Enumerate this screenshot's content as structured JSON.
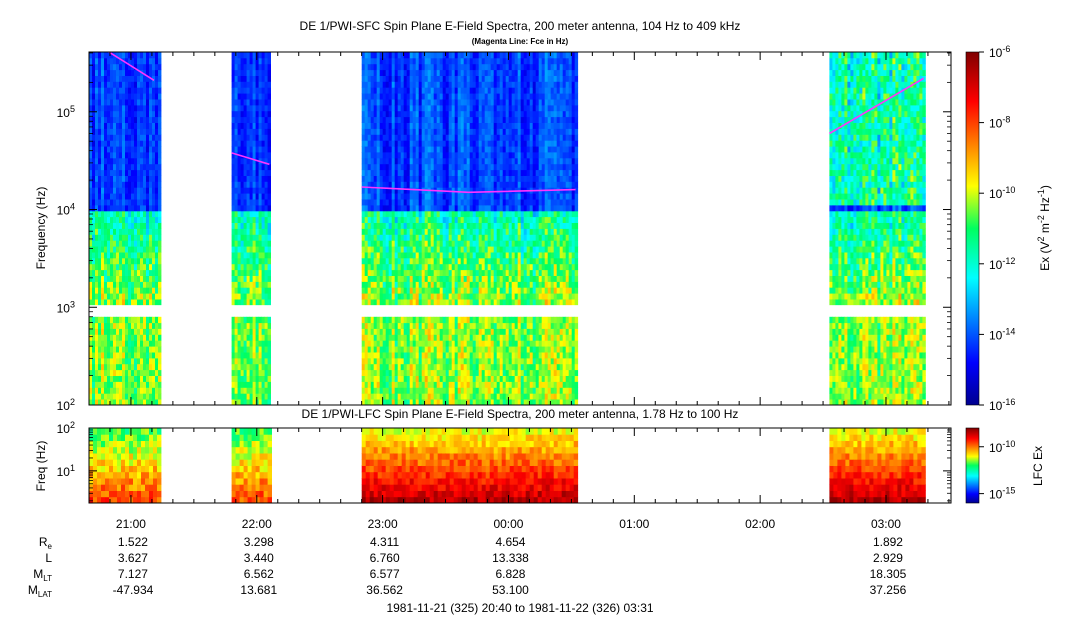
{
  "chart_data": [
    {
      "type": "heatmap",
      "title": "DE 1/PWI-SFC  Spin Plane E-Field Spectra, 200 meter antenna, 104 Hz to 409 kHz",
      "subtitle": "(Magenta Line: Fce in Hz)",
      "ylabel": "Frequency (Hz)",
      "y_scale": "log",
      "ylim": [
        100,
        409000
      ],
      "y_ticks": [
        {
          "value": 100,
          "base": "10",
          "exp": "2"
        },
        {
          "value": 1000,
          "base": "10",
          "exp": "3"
        },
        {
          "value": 10000,
          "base": "10",
          "exp": "4"
        },
        {
          "value": 100000,
          "base": "10",
          "exp": "5"
        }
      ],
      "colorbar": {
        "label_main": "Ex (V",
        "label_sup1": "2",
        "label_mid": " m",
        "label_sup2": "-2",
        "label_mid2": " Hz",
        "label_sup3": "-1",
        "label_end": ")",
        "scale": "log",
        "range": [
          1e-16,
          1e-06
        ],
        "ticks": [
          {
            "value": 1e-06,
            "base": "10",
            "exp": "-6"
          },
          {
            "value": 1e-08,
            "base": "10",
            "exp": "-8"
          },
          {
            "value": 1e-10,
            "base": "10",
            "exp": "-10"
          },
          {
            "value": 1e-12,
            "base": "10",
            "exp": "-12"
          },
          {
            "value": 1e-14,
            "base": "10",
            "exp": "-14"
          },
          {
            "value": 1e-16,
            "base": "10",
            "exp": "-16"
          }
        ]
      },
      "data_gaps_hz": [
        [
          900,
          1050
        ]
      ],
      "data_intervals_minutes_after_2040": [
        {
          "start": 0,
          "end": 34,
          "fce_hz": [
            [
              5,
              470000
            ],
            [
              31,
              210000
            ]
          ]
        },
        {
          "start": 68,
          "end": 86,
          "fce_hz": [
            [
              68,
              38000
            ],
            [
              86,
              29000
            ]
          ]
        },
        {
          "start": 130,
          "end": 232,
          "fce_hz": [
            [
              130,
              17000
            ],
            [
              181,
              15000
            ],
            [
              232,
              16000
            ]
          ]
        },
        {
          "start": 353,
          "end": 398,
          "fce_hz": [
            [
              353,
              60000
            ],
            [
              398,
              220000
            ]
          ]
        }
      ],
      "fce_line_color": "#ff33ff"
    },
    {
      "type": "heatmap",
      "title": "DE 1/PWI-LFC  Spin Plane E-Field Spectra, 200 meter antenna, 1.78 Hz to 100 Hz",
      "ylabel": "Freq (Hz)",
      "y_scale": "log",
      "ylim": [
        1.78,
        100
      ],
      "y_ticks": [
        {
          "value": 10,
          "label": "10",
          "exp": "1"
        },
        {
          "value": 100,
          "label": "10",
          "exp": "2"
        }
      ],
      "colorbar": {
        "label": "LFC Ex",
        "scale": "log",
        "range": [
          1e-16,
          1e-08
        ],
        "ticks": [
          {
            "value": 1e-10,
            "base": "10",
            "exp": "-10"
          },
          {
            "value": 1e-15,
            "base": "10",
            "exp": "-15"
          }
        ]
      },
      "data_intervals_minutes_after_2040": [
        {
          "start": 0,
          "end": 34
        },
        {
          "start": 68,
          "end": 86
        },
        {
          "start": 130,
          "end": 232
        },
        {
          "start": 353,
          "end": 398
        }
      ]
    }
  ],
  "x_axis": {
    "start": "20:40",
    "end": "03:31",
    "range_minutes": [
      0,
      411
    ],
    "ticks": [
      {
        "minutes": 20,
        "label": "21:00"
      },
      {
        "minutes": 80,
        "label": "22:00"
      },
      {
        "minutes": 140,
        "label": "23:00"
      },
      {
        "minutes": 200,
        "label": "00:00"
      },
      {
        "minutes": 260,
        "label": "01:00"
      },
      {
        "minutes": 320,
        "label": "02:00"
      },
      {
        "minutes": 380,
        "label": "03:00"
      }
    ]
  },
  "ephemeris": {
    "rows": [
      {
        "label": "R",
        "sub": "e",
        "values": [
          "1.522",
          "3.298",
          "4.311",
          "4.654",
          "",
          "",
          "1.892"
        ]
      },
      {
        "label": "L",
        "sub": "",
        "values": [
          "3.627",
          "3.440",
          "6.760",
          "13.338",
          "",
          "",
          "2.929"
        ]
      },
      {
        "label": "M",
        "sub": "LT",
        "values": [
          "7.127",
          "6.562",
          "6.577",
          "6.828",
          "",
          "",
          "18.305"
        ]
      },
      {
        "label": "M",
        "sub": "LAT",
        "values": [
          "-47.934",
          "13.681",
          "36.562",
          "53.100",
          "",
          "",
          "37.256"
        ]
      }
    ]
  },
  "footer": "1981-11-21 (325) 20:40 to 1981-11-22 (326) 03:31"
}
